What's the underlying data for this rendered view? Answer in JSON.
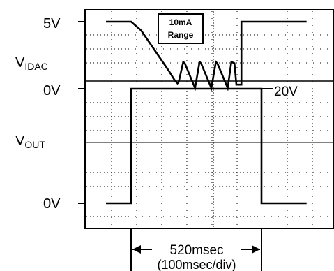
{
  "chart_data": {
    "type": "line",
    "title": "",
    "xlabel": "",
    "ylabel": "",
    "grid": true,
    "annotations": {
      "box": [
        "10mA",
        "Range"
      ],
      "dimension": [
        "520msec",
        "(100msec/div)"
      ],
      "right_level": "20V"
    },
    "channels": [
      {
        "name": "VIDAC",
        "label_main": "V",
        "label_sub": "IDAC",
        "tick_labels": {
          "top": "5V",
          "bottom": "0V"
        },
        "y_units": "V",
        "ylim": [
          0,
          5
        ],
        "x_units": "msec",
        "xlim": [
          -100,
          700
        ],
        "points": [
          [
            -100,
            5
          ],
          [
            0,
            5
          ],
          [
            40,
            4.35
          ],
          [
            150,
            1.35
          ],
          [
            175,
            0.6
          ],
          [
            185,
            0.4
          ],
          [
            190,
            0.5
          ],
          [
            208,
            2.0
          ],
          [
            214,
            1.9
          ],
          [
            255,
            0.05
          ],
          [
            273,
            2.0
          ],
          [
            279,
            1.9
          ],
          [
            320,
            0.05
          ],
          [
            338,
            2.0
          ],
          [
            344,
            1.9
          ],
          [
            385,
            0.05
          ],
          [
            400,
            2.0
          ],
          [
            412,
            1.9
          ],
          [
            420,
            0.3
          ],
          [
            440,
            0.3
          ],
          [
            440,
            5
          ],
          [
            700,
            5
          ]
        ]
      },
      {
        "name": "VOUT",
        "label_main": "V",
        "label_sub": "OUT",
        "tick_labels": {
          "top": "20V",
          "bottom": "0V"
        },
        "y_units": "V",
        "ylim": [
          0,
          20
        ],
        "x_units": "msec",
        "xlim": [
          -100,
          700
        ],
        "points": [
          [
            -100,
            0
          ],
          [
            -80,
            0
          ],
          [
            -60,
            0
          ],
          [
            -40,
            0
          ],
          [
            0,
            0
          ],
          [
            0,
            20
          ],
          [
            520,
            20
          ],
          [
            520,
            0
          ],
          [
            540,
            0
          ],
          [
            560,
            0
          ],
          [
            600,
            0
          ],
          [
            700,
            0
          ]
        ]
      }
    ]
  }
}
